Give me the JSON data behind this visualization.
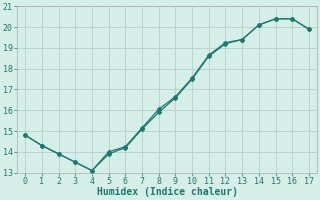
{
  "title": "",
  "xlabel": "Humidex (Indice chaleur)",
  "background_color": "#d6eee8",
  "grid_color": "#b8d4ce",
  "line_color": "#1a7a6e",
  "xlim": [
    -0.5,
    17.5
  ],
  "ylim": [
    13,
    21
  ],
  "xticks": [
    0,
    1,
    2,
    3,
    4,
    5,
    6,
    7,
    8,
    9,
    10,
    11,
    12,
    13,
    14,
    15,
    16,
    17
  ],
  "yticks": [
    13,
    14,
    15,
    16,
    17,
    18,
    19,
    20,
    21
  ],
  "branch_a_x": [
    0,
    1,
    2,
    3,
    4,
    5,
    6,
    7,
    8,
    9,
    10,
    11,
    12,
    13,
    14,
    15,
    16,
    17
  ],
  "branch_a_y": [
    14.8,
    14.3,
    13.9,
    13.5,
    13.1,
    13.9,
    14.2,
    15.1,
    15.9,
    16.6,
    17.5,
    18.6,
    19.2,
    19.4,
    20.1,
    20.4,
    20.4,
    19.9
  ],
  "branch_b_x": [
    0,
    1,
    2,
    3,
    4,
    5,
    6,
    7,
    8,
    9,
    10,
    11,
    12,
    13,
    14,
    15,
    16,
    17
  ],
  "branch_b_y": [
    14.8,
    14.3,
    13.9,
    13.5,
    13.1,
    14.0,
    14.25,
    15.15,
    16.05,
    16.65,
    17.55,
    18.65,
    19.25,
    19.4,
    20.1,
    20.4,
    20.4,
    19.9
  ],
  "xlabel_fontsize": 7,
  "tick_fontsize": 6,
  "marker": "D",
  "marker_size": 2,
  "linewidth": 0.9
}
